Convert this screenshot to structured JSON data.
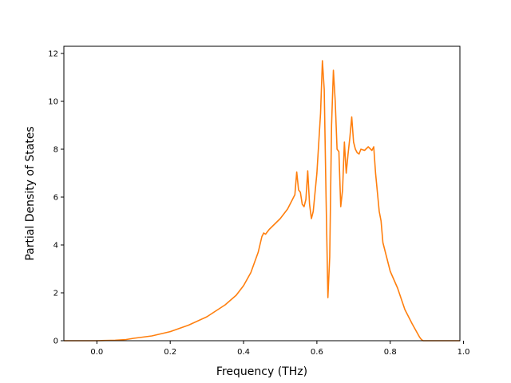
{
  "chart_data": {
    "type": "line",
    "title": "",
    "xlabel": "Frequency (THz)",
    "ylabel": "Partial Density of States",
    "xlim": [
      -0.09,
      0.99
    ],
    "ylim": [
      0,
      12.3
    ],
    "grid": false,
    "legend": "none",
    "xticks": [
      0.0,
      0.2,
      0.4,
      0.6,
      0.8,
      1.0
    ],
    "xtick_labels": [
      "0.0",
      "0.2",
      "0.4",
      "0.6",
      "0.8",
      "1.0"
    ],
    "yticks": [
      0,
      2,
      4,
      6,
      8,
      10,
      12
    ],
    "ytick_labels": [
      "0",
      "2",
      "4",
      "6",
      "8",
      "10",
      "12"
    ],
    "series": [
      {
        "color": "#ff7f0e",
        "x": [
          -0.09,
          0.0,
          0.05,
          0.08,
          0.1,
          0.15,
          0.2,
          0.25,
          0.3,
          0.35,
          0.38,
          0.4,
          0.42,
          0.44,
          0.45,
          0.455,
          0.46,
          0.47,
          0.48,
          0.5,
          0.52,
          0.53,
          0.54,
          0.545,
          0.55,
          0.555,
          0.56,
          0.565,
          0.57,
          0.575,
          0.58,
          0.585,
          0.59,
          0.6,
          0.61,
          0.615,
          0.62,
          0.625,
          0.63,
          0.635,
          0.64,
          0.645,
          0.65,
          0.655,
          0.66,
          0.665,
          0.67,
          0.675,
          0.68,
          0.685,
          0.69,
          0.695,
          0.7,
          0.705,
          0.71,
          0.715,
          0.72,
          0.73,
          0.74,
          0.75,
          0.755,
          0.76,
          0.765,
          0.77,
          0.775,
          0.78,
          0.79,
          0.8,
          0.82,
          0.84,
          0.86,
          0.88,
          0.885,
          0.89,
          0.895,
          0.9,
          0.92,
          0.95,
          0.99
        ],
        "y": [
          0.0,
          0.0,
          0.02,
          0.05,
          0.1,
          0.2,
          0.38,
          0.65,
          1.0,
          1.5,
          1.9,
          2.3,
          2.85,
          3.7,
          4.35,
          4.5,
          4.45,
          4.65,
          4.8,
          5.1,
          5.5,
          5.8,
          6.1,
          7.05,
          6.3,
          6.2,
          5.7,
          5.6,
          5.9,
          7.1,
          5.7,
          5.1,
          5.4,
          7.0,
          9.5,
          11.7,
          10.5,
          6.0,
          1.8,
          3.5,
          9.0,
          11.3,
          10.0,
          8.0,
          7.9,
          5.6,
          6.3,
          8.3,
          7.0,
          7.8,
          8.5,
          9.35,
          8.3,
          8.0,
          7.85,
          7.8,
          8.0,
          7.95,
          8.1,
          7.95,
          8.1,
          7.0,
          6.2,
          5.4,
          5.0,
          4.1,
          3.5,
          2.9,
          2.2,
          1.3,
          0.7,
          0.15,
          0.05,
          0.0,
          0.0,
          0.0,
          0.0,
          0.0,
          0.0
        ]
      }
    ]
  }
}
